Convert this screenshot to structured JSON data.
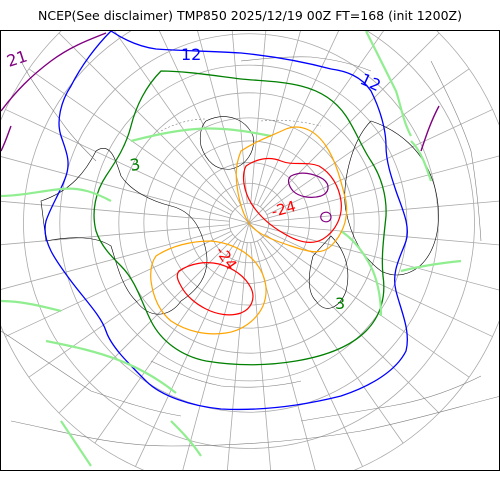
{
  "title": "NCEP(See disclaimer) TMP850 2025/12/19 00Z FT=168 (init 1200Z)",
  "map": {
    "projection": "north-polar-stereographic",
    "center_latitude": 90,
    "graticule": {
      "latitude_step_deg": 10,
      "longitude_step_deg": 30
    },
    "contour_colors": {
      "21": "#800080",
      "12": "#0000ff",
      "3": "#008000",
      "-6": "#90ee90",
      "-15": "#ffa500",
      "-24": "#ff0000",
      "-33": "#800080",
      "other": "#808080"
    },
    "labels": [
      {
        "text": "21",
        "color": "#800080"
      },
      {
        "text": "12",
        "color": "#0000ff"
      },
      {
        "text": "12",
        "color": "#0000ff"
      },
      {
        "text": "3",
        "color": "#008000"
      },
      {
        "text": "3",
        "color": "#008000"
      },
      {
        "text": "-24",
        "color": "#ff0000"
      },
      {
        "text": "-24",
        "color": "#ff0000"
      }
    ]
  }
}
